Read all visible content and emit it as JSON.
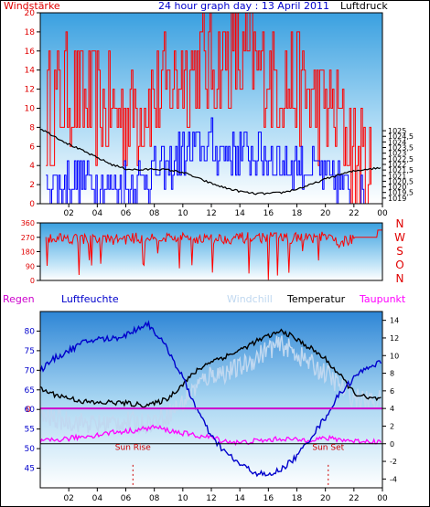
{
  "chart_data": [
    {
      "type": "line",
      "title": "24 hour graph day : 13 April 2011",
      "left_label": "Windstärke",
      "right_label": "Luftdruck",
      "x_ticks": [
        "02",
        "04",
        "06",
        "08",
        "10",
        "12",
        "14",
        "16",
        "18",
        "20",
        "22",
        "00"
      ],
      "y_left": {
        "range": [
          0,
          20
        ],
        "ticks": [
          "0",
          "2",
          "4",
          "6",
          "8",
          "10",
          "12",
          "14",
          "16",
          "18",
          "20"
        ]
      },
      "y_right": {
        "range": [
          1018.5,
          1035.5
        ],
        "ticks": [
          "1019",
          "1019,5",
          "1020",
          "1020,5",
          "1021",
          "1021,5",
          "1022",
          "1022,5",
          "1023",
          "1023,5",
          "1024",
          "1024,5",
          "1025"
        ]
      },
      "series": [
        {
          "label": "Windstärke (gust)",
          "color": "#ff0000",
          "x": [
            0.5,
            2,
            4,
            6,
            8,
            10,
            12,
            14,
            16,
            18,
            20,
            21,
            22,
            23,
            24
          ],
          "y": [
            9.5,
            12,
            10,
            9,
            11,
            14,
            15,
            15,
            14,
            12,
            10,
            9,
            5,
            3,
            1
          ]
        },
        {
          "label": "Windstärke (avg)",
          "color": "#0000ff",
          "x": [
            0.5,
            2,
            4,
            6,
            8,
            10,
            12,
            14,
            16,
            18,
            20,
            21,
            22,
            23,
            24
          ],
          "y": [
            2,
            2.5,
            2.2,
            2,
            3,
            5,
            6,
            5.5,
            5,
            4,
            3,
            2,
            1,
            0.5,
            0
          ]
        },
        {
          "label": "Luftdruck",
          "color": "#000000",
          "x": [
            0,
            1,
            2,
            3,
            4,
            5,
            6,
            7,
            8,
            9,
            10,
            11,
            12,
            13,
            14,
            15,
            16,
            17,
            18,
            19,
            20,
            21,
            22,
            23,
            24
          ],
          "y": [
            1025.2,
            1024.5,
            1023.8,
            1023.2,
            1022.6,
            1022.0,
            1021.6,
            1021.5,
            1021.6,
            1021.5,
            1021.3,
            1020.8,
            1020.3,
            1019.9,
            1019.6,
            1019.4,
            1019.4,
            1019.5,
            1019.8,
            1020.2,
            1020.7,
            1021.1,
            1021.4,
            1021.6,
            1021.7
          ]
        }
      ]
    },
    {
      "type": "line",
      "title": "",
      "direction_letters": [
        "N",
        "W",
        "S",
        "O",
        "N"
      ],
      "y": {
        "range": [
          0,
          360
        ],
        "ticks": [
          "0",
          "90",
          "180",
          "270",
          "360"
        ]
      },
      "x_ticks": [],
      "series": [
        {
          "label": "Windrichtung",
          "color": "#ff0000",
          "x": [
            0.5,
            2,
            4,
            6,
            8,
            10,
            12,
            14,
            16,
            18,
            20,
            21,
            22,
            23,
            24
          ],
          "y": [
            270,
            265,
            255,
            260,
            270,
            265,
            260,
            265,
            270,
            265,
            270,
            235,
            265,
            270,
            315
          ]
        }
      ]
    },
    {
      "type": "line",
      "legend": [
        "Regen",
        "Luftfeuchte",
        "Windchill",
        "Temperatur",
        "Taupunkt"
      ],
      "legend_colors": [
        "#cc00cc",
        "#0000cc",
        "#c0d8f0",
        "#000000",
        "#ff00ff"
      ],
      "y_left": {
        "range": [
          40,
          85
        ],
        "ticks": [
          "45",
          "50",
          "55",
          "60",
          "65",
          "70",
          "75",
          "80"
        ]
      },
      "y_right": {
        "range": [
          -5,
          15
        ],
        "ticks": [
          "-4",
          "-2",
          "0",
          "2",
          "4",
          "6",
          "8",
          "10",
          "12",
          "14"
        ]
      },
      "x_ticks": [
        "02",
        "04",
        "06",
        "08",
        "10",
        "12",
        "14",
        "16",
        "18",
        "20",
        "22",
        "00"
      ],
      "zero_label": "0",
      "annotations": [
        {
          "text": "Sun Rise",
          "x": 6.5
        },
        {
          "text": "Sun Set",
          "x": 20.2
        }
      ],
      "series": [
        {
          "label": "Luftfeuchte",
          "axis": "left",
          "color": "#0000cc",
          "x": [
            0,
            1,
            2,
            3,
            4,
            5,
            6,
            7,
            7.5,
            8,
            9,
            10,
            11,
            12,
            13,
            14,
            15,
            16,
            17,
            18,
            19,
            20,
            21,
            22,
            23,
            24
          ],
          "y": [
            70,
            73,
            75,
            77,
            78,
            78,
            79,
            81,
            82,
            80,
            75,
            68,
            60,
            53,
            49,
            46,
            44,
            43,
            45,
            48,
            53,
            58,
            64,
            68,
            71,
            72
          ]
        },
        {
          "label": "Temperatur",
          "axis": "right",
          "color": "#000000",
          "x": [
            0,
            1,
            2,
            3,
            4,
            5,
            6,
            7,
            8,
            9,
            10,
            11,
            12,
            13,
            14,
            15,
            16,
            17,
            18,
            19,
            20,
            21,
            22,
            23,
            24
          ],
          "y": [
            6.2,
            5.6,
            5.2,
            4.8,
            4.6,
            4.7,
            4.6,
            4.4,
            4.5,
            5.2,
            6.8,
            8.3,
            9.4,
            9.9,
            10.6,
            11.5,
            12.2,
            12.8,
            11.8,
            10.8,
            9.6,
            7.8,
            5.8,
            5.1,
            5.1
          ]
        },
        {
          "label": "Windchill",
          "axis": "right",
          "color": "#c0d8f0",
          "x": [
            0,
            1,
            2,
            3,
            4,
            5,
            6,
            7,
            8,
            9,
            10,
            11,
            12,
            13,
            14,
            15,
            16,
            17,
            18,
            19,
            20,
            21,
            22,
            23,
            24
          ],
          "y": [
            3.2,
            2.8,
            2.6,
            2.4,
            2.2,
            2.4,
            2.5,
            2.3,
            2.6,
            3.4,
            4.6,
            6.6,
            7.9,
            8.1,
            8.6,
            9.6,
            10.8,
            11.2,
            10.2,
            9.0,
            8.0,
            6.6,
            5.2,
            4.8,
            5.0
          ]
        },
        {
          "label": "Taupunkt",
          "axis": "right",
          "color": "#ff00ff",
          "x": [
            0,
            1,
            2,
            3,
            4,
            5,
            6,
            7,
            8,
            9,
            10,
            11,
            12,
            13,
            14,
            15,
            16,
            17,
            18,
            19,
            20,
            21,
            22,
            23,
            24
          ],
          "y": [
            0.2,
            0.4,
            0.6,
            0.8,
            1.0,
            1.3,
            1.4,
            1.6,
            1.9,
            1.5,
            1.2,
            0.9,
            0.7,
            0.3,
            0.1,
            0.3,
            0.4,
            0.6,
            0.4,
            0.5,
            0.6,
            0.5,
            0.3,
            0.3,
            0.2
          ]
        },
        {
          "label": "Regen",
          "axis": "right",
          "color": "#cc00cc",
          "x": [
            0,
            24
          ],
          "y": [
            4.0,
            4.0
          ]
        }
      ]
    }
  ]
}
